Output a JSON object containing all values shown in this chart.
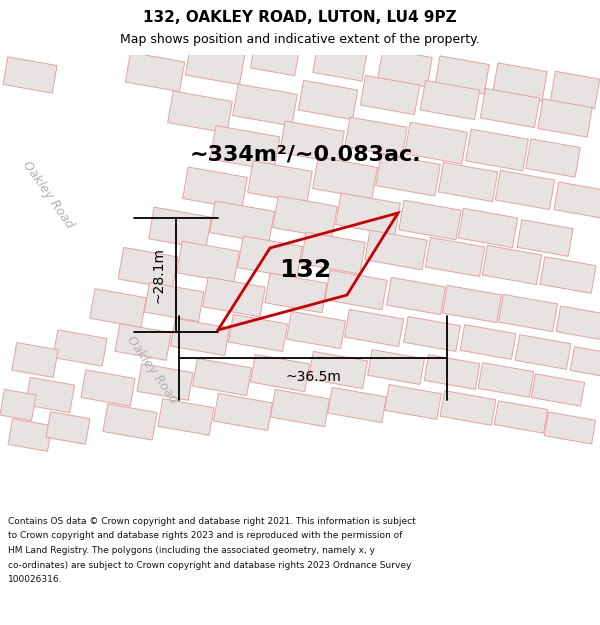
{
  "title_line1": "132, OAKLEY ROAD, LUTON, LU4 9PZ",
  "title_line2": "Map shows position and indicative extent of the property.",
  "area_text": "~334m²/~0.083ac.",
  "number_label": "132",
  "dim_width": "~36.5m",
  "dim_height": "~28.1m",
  "road_label_upper": "Oakley Road",
  "road_label_lower": "Oakley Road",
  "footer_lines": [
    "Contains OS data © Crown copyright and database right 2021. This information is subject",
    "to Crown copyright and database rights 2023 and is reproduced with the permission of",
    "HM Land Registry. The polygons (including the associated geometry, namely x, y",
    "co-ordinates) are subject to Crown copyright and database rights 2023 Ordnance Survey",
    "100026316."
  ],
  "bg_color": "#f5f0f0",
  "building_fill": "#e8e3e3",
  "building_stroke": "#e8a0a0",
  "road_fill": "#ffffff",
  "highlight_stroke": "#cc0000",
  "title_fontsize": 11,
  "subtitle_fontsize": 9,
  "area_fontsize": 16,
  "num_fontsize": 18,
  "dim_fontsize": 10,
  "road_fontsize": 9,
  "footer_fontsize": 6.5
}
